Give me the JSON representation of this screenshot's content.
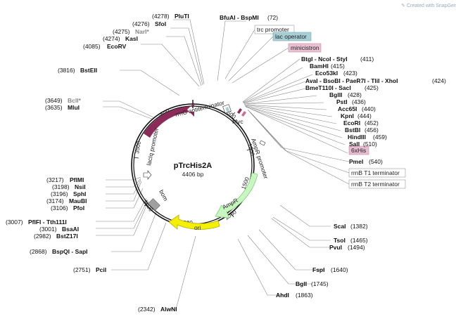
{
  "plasmid": {
    "name": "pTrcHis2A",
    "size": "4406 bp"
  },
  "watermark": "Created with SnapGene®",
  "ticks": [
    "500",
    "1000",
    "1500",
    "2000",
    "2500",
    "3000",
    "3500",
    "4000"
  ],
  "features": {
    "lacI": "lacI",
    "lacIq_promoter": "lacIq promoter",
    "rrnG": "rrnG antiterminator",
    "myc": "Myc",
    "ampR_promoter": "AmpR promoter",
    "ampR": "AmpR",
    "ori": "ori",
    "bom": "bom"
  },
  "boxes": {
    "trc_promoter": "trc promoter",
    "lac_operator": "lac operator",
    "minicistron": "minicistron",
    "his": "6xHis",
    "rrnB_T1": "rrnB T1 terminator",
    "rrnB_T2": "rrnB T2 terminator"
  },
  "sites": {
    "plutI": {
      "pos": "(4278)",
      "name": "PluTI"
    },
    "sfoI": {
      "pos": "(4276)",
      "name": "SfoI"
    },
    "narI": {
      "pos": "(4275)",
      "name": "NarI*"
    },
    "kasI": {
      "pos": "(4274)",
      "name": "KasI"
    },
    "ecorv": {
      "pos": "(4085)",
      "name": "EcoRV"
    },
    "bsteii": {
      "pos": "(3816)",
      "name": "BstEII"
    },
    "bcli": {
      "pos": "(3649)",
      "name": "BclI*"
    },
    "mlui": {
      "pos": "(3635)",
      "name": "MluI"
    },
    "pfimi": {
      "pos": "(3217)",
      "name": "PflMI"
    },
    "nsii": {
      "pos": "(3198)",
      "name": "NsiI"
    },
    "sphi": {
      "pos": "(3196)",
      "name": "SphI"
    },
    "maubi": {
      "pos": "(3174)",
      "name": "MauBI"
    },
    "pfoi": {
      "pos": "(3106)",
      "name": "PfoI"
    },
    "pflfi": {
      "pos": "(3007)",
      "name": "PflFI - Tth111I"
    },
    "bsaai": {
      "pos": "(3001)",
      "name": "BsaAI"
    },
    "bstz17i": {
      "pos": "(2982)",
      "name": "BstZ17I"
    },
    "bspqi": {
      "pos": "(2868)",
      "name": "BspQI - SapI"
    },
    "pcii": {
      "pos": "(2751)",
      "name": "PciI"
    },
    "alwni": {
      "pos": "(2342)",
      "name": "AlwNI"
    },
    "bfuai": {
      "name": "BfuAI - BspMI",
      "pos": "(72)"
    },
    "btgi": {
      "name": "BtgI - NcoI - StyI",
      "pos": "(411)"
    },
    "bamhi": {
      "name": "BamHI",
      "pos": "(415)"
    },
    "eco53ki": {
      "name": "Eco53kI",
      "pos": "(423)"
    },
    "avai": {
      "name": "AvaI - BsoBI - PaeR7I - TliI - XhoI",
      "pos": "(424)"
    },
    "bmet110i": {
      "name": "BmeT110I - SacI",
      "pos": "(425)"
    },
    "bglii": {
      "name": "BglII",
      "pos": "(428)"
    },
    "psti": {
      "name": "PstI",
      "pos": "(436)"
    },
    "acc65i": {
      "name": "Acc65I",
      "pos": "(440)"
    },
    "kpni": {
      "name": "KpnI",
      "pos": "(444)"
    },
    "ecori": {
      "name": "EcoRI",
      "pos": "(452)"
    },
    "bstbi": {
      "name": "BstBI",
      "pos": "(456)"
    },
    "hindiii": {
      "name": "HindIII",
      "pos": "(459)"
    },
    "sali": {
      "name": "SalI",
      "pos": "(510)"
    },
    "pmei": {
      "name": "PmeI",
      "pos": "(540)"
    },
    "scai": {
      "name": "ScaI",
      "pos": "(1382)"
    },
    "tsoi": {
      "name": "TsoI",
      "pos": "(1465)"
    },
    "pvui": {
      "name": "PvuI",
      "pos": "(1494)"
    },
    "fspi": {
      "name": "FspI",
      "pos": "(1640)"
    },
    "bgli": {
      "name": "BglI",
      "pos": "(1745)"
    },
    "ahdi": {
      "name": "AhdI",
      "pos": "(1863)"
    }
  },
  "colors": {
    "lacI": "#8c2a5a",
    "ampR": "#c8f5c0",
    "ori": "#f5f000",
    "bom": "#a0a0a0",
    "lac_operator": "#a8cfd6",
    "minicistron": "#e9c1d2",
    "his": "#e6bcd0"
  }
}
